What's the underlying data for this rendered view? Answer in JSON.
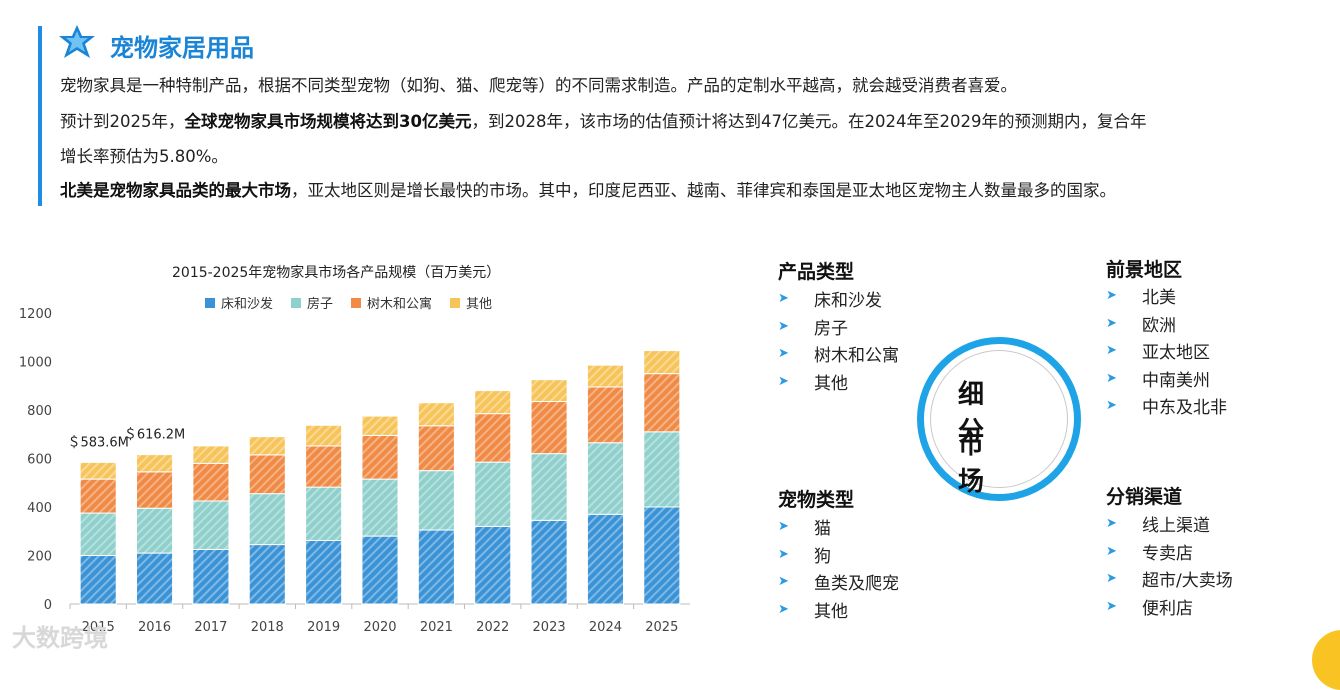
{
  "header": {
    "title": "宠物家居用品",
    "icon": "star-badge-icon",
    "accent": "#1a84d6"
  },
  "paragraphs": {
    "p1": "宠物家具是一种特制产品，根据不同类型宠物（如狗、猫、爬宠等）的不同需求制造。产品的定制水平越高，就会越受消费者喜爱。",
    "p2_pre": "预计到2025年，",
    "p2_bold": "全球宠物家具市场规模将达到30亿美元",
    "p2_post": "，到2028年，该市场的估值预计将达到47亿美元。在2024年至2029年的预测期内，复合年",
    "p3": "增长率预估为5.80%。",
    "p4_bold": "北美是宠物家具品类的最大市场",
    "p4_post": "，亚太地区则是增长最快的市场。其中，印度尼西亚、越南、菲律宾和泰国是亚太地区宠物主人数量最多的国家。"
  },
  "chart_data": {
    "type": "bar",
    "stacked": true,
    "title": "2015-2025年宠物家具市场各产品规模（百万美元）",
    "categories": [
      "2015",
      "2016",
      "2017",
      "2018",
      "2019",
      "2020",
      "2021",
      "2022",
      "2023",
      "2024",
      "2025"
    ],
    "series": [
      {
        "name": "床和沙发",
        "color": "#3a93d6",
        "values": [
          200,
          210,
          225,
          245,
          262,
          280,
          305,
          320,
          345,
          370,
          400
        ]
      },
      {
        "name": "房子",
        "color": "#8fd0cc",
        "values": [
          175,
          185,
          200,
          210,
          220,
          235,
          245,
          265,
          275,
          295,
          310
        ]
      },
      {
        "name": "树木和公寓",
        "color": "#f08a45",
        "values": [
          140,
          150,
          155,
          160,
          170,
          180,
          185,
          200,
          215,
          230,
          240
        ]
      },
      {
        "name": "其他",
        "color": "#f7c45a",
        "values": [
          69,
          71,
          72,
          75,
          85,
          80,
          95,
          95,
          90,
          90,
          95
        ]
      }
    ],
    "annotations": [
      {
        "category": "2015",
        "text": "＄583.6M"
      },
      {
        "category": "2016",
        "text": "＄616.2M"
      }
    ],
    "ylim": [
      0,
      1200
    ],
    "yticks": [
      "0",
      "200",
      "400",
      "600",
      "800",
      "1000",
      "1200"
    ],
    "legend_position": "top"
  },
  "segments": {
    "center_line1": "细 分",
    "center_line2": "市 场",
    "ring_color": "#1ea4e6",
    "product": {
      "title": "产品类型",
      "items": [
        "床和沙发",
        "房子",
        "树木和公寓",
        "其他"
      ]
    },
    "pet": {
      "title": "宠物类型",
      "items": [
        "猫",
        "狗",
        "鱼类及爬宠",
        "其他"
      ]
    },
    "region": {
      "title": "前景地区",
      "items": [
        "北美",
        "欧洲",
        "亚太地区",
        "中南美州",
        "中东及北非"
      ]
    },
    "channel": {
      "title": "分销渠道",
      "items": [
        "线上渠道",
        "专卖店",
        "超市/大卖场",
        "便利店"
      ]
    },
    "bullet": "➤"
  },
  "watermark": "大数跨境"
}
